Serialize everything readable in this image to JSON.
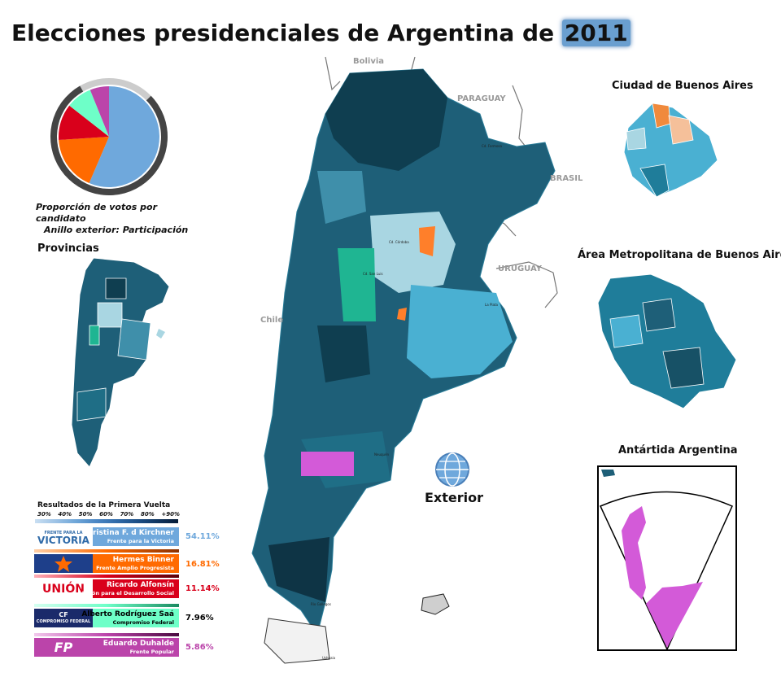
{
  "title": {
    "prefix": "Elecciones presidenciales de Argentina de",
    "year": "2011"
  },
  "pie": {
    "caption_line1": "Proporción de votos por candidato",
    "caption_line2": "Anillo exterior: Participación"
  },
  "sections": {
    "provincias": "Provincias",
    "caba": "Ciudad de Buenos Aires",
    "amba": "Área Metropolitana de Buenos Aires",
    "antartida": "Antártida Argentina",
    "exterior": "Exterior"
  },
  "countries": {
    "bolivia": "Bolivia",
    "paraguay": "PARAGUAY",
    "brasil": "BRASIL",
    "uruguay": "URUGUAY",
    "chile": "Chile"
  },
  "cities": {
    "cordoba": "Cd. Córdoba",
    "san_luis": "Cd. San Luis",
    "la_plata": "La Plata",
    "formosa": "Cd. Formosa",
    "neuquen": "Neuquén",
    "rio_gallegos": "Río Gallegos",
    "ushuaia": "Ushuaia"
  },
  "legend": {
    "title": "Resultados de la Primera Vuelta",
    "scale": [
      "30%",
      "40%",
      "50%",
      "60%",
      "70%",
      "80%",
      "+90%"
    ]
  },
  "candidates": [
    {
      "name": "Cristina F. d Kirchner",
      "party": "Frente para la Victoria",
      "logo": "VICTORIA",
      "logo_top": "FRENTE PARA LA",
      "pct": "54.11%",
      "color": "#6fa8dc"
    },
    {
      "name": "Hermes Binner",
      "party": "Frente Amplio Progresista",
      "logo": "",
      "pct": "16.81%",
      "color": "#ff6a00"
    },
    {
      "name": "Ricardo Alfonsín",
      "party": "Unión para el Desarrollo Social",
      "logo": "UNIÓN",
      "pct": "11.14%",
      "color": "#d9001b"
    },
    {
      "name": "Alberto Rodríguez Saá",
      "party": "Compromiso Federal",
      "logo": "COMPROMISO FEDERAL",
      "logo_top": "CF",
      "pct": "7.96%",
      "color": "#6effc8"
    },
    {
      "name": "Eduardo Duhalde",
      "party": "Frente Popular",
      "logo": "FP",
      "pct": "5.86%",
      "color": "#bb44aa"
    }
  ],
  "chart_data": {
    "type": "pie",
    "categories": [
      "Cristina F. d Kirchner",
      "Hermes Binner",
      "Ricardo Alfonsín",
      "Alberto Rodríguez Saá",
      "Eduardo Duhalde"
    ],
    "values": [
      54.11,
      16.81,
      11.14,
      7.96,
      5.86
    ],
    "colors": [
      "#6fa8dc",
      "#ff6a00",
      "#d9001b",
      "#6effc8",
      "#bb44aa"
    ],
    "outer_ring": {
      "turnout_fraction": 0.79,
      "color_filled": "#444444",
      "color_empty": "#cccccc"
    }
  }
}
